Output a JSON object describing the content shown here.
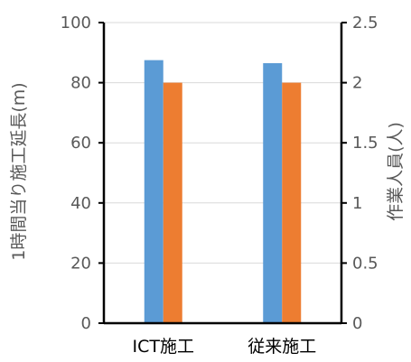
{
  "chart_data": {
    "type": "bar",
    "categories": [
      "ICT施工",
      "従来施工"
    ],
    "series": [
      {
        "values": [
          87.5,
          86.5
        ],
        "color": "#5b9bd5",
        "axis": "left"
      },
      {
        "values": [
          2,
          2
        ],
        "color": "#ed7d31",
        "axis": "right"
      }
    ],
    "ylabel": "1時間当り施工延長(m)",
    "ylim": [
      0,
      100
    ],
    "yticks": [
      "0",
      "20",
      "40",
      "60",
      "80",
      "100"
    ],
    "y2label": "作業人員(人)",
    "y2lim": [
      0,
      2.5
    ],
    "y2ticks": [
      "0",
      "0.5",
      "1",
      "1.5",
      "2",
      "2.5"
    ],
    "grid": true,
    "legend": "none"
  }
}
